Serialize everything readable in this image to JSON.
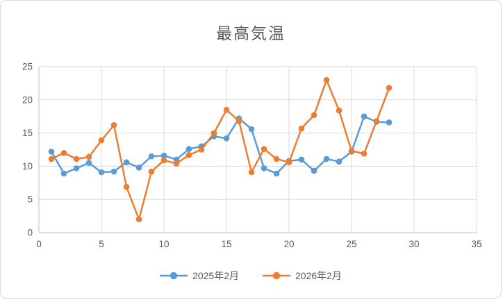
{
  "chart_data": {
    "type": "line",
    "title": "最高気温",
    "x": [
      1,
      2,
      3,
      4,
      5,
      6,
      7,
      8,
      9,
      10,
      11,
      12,
      13,
      14,
      15,
      16,
      17,
      18,
      19,
      20,
      21,
      22,
      23,
      24,
      25,
      26,
      27,
      28
    ],
    "series": [
      {
        "name": "2025年2月",
        "color": "#5B9BD5",
        "values": [
          12.2,
          8.9,
          9.7,
          10.5,
          9.1,
          9.2,
          10.6,
          9.8,
          11.5,
          11.6,
          11.0,
          12.6,
          13.0,
          14.5,
          14.2,
          17.2,
          15.6,
          9.7,
          8.9,
          10.8,
          11.0,
          9.3,
          11.1,
          10.7,
          12.2,
          17.5,
          16.7,
          16.6
        ]
      },
      {
        "name": "2026年2月",
        "color": "#ED7D31",
        "values": [
          11.1,
          12.0,
          11.1,
          11.4,
          13.9,
          16.2,
          6.9,
          2.0,
          9.2,
          10.9,
          10.4,
          11.7,
          12.5,
          15.0,
          18.5,
          16.8,
          9.1,
          12.6,
          11.1,
          10.6,
          15.7,
          17.7,
          23.0,
          18.4,
          12.3,
          11.9,
          16.8,
          21.8
        ]
      }
    ],
    "xlim": [
      0,
      35
    ],
    "ylim": [
      0,
      25
    ],
    "xticks": [
      0,
      5,
      10,
      15,
      20,
      25,
      30,
      35
    ],
    "yticks": [
      0,
      5,
      10,
      15,
      20,
      25
    ],
    "xlabel": "",
    "ylabel": "",
    "grid": true,
    "legend_position": "bottom",
    "marker": "circle",
    "grid_color": "#D9D9D9",
    "axis_color": "#BFBFBF",
    "text_color": "#595959"
  }
}
